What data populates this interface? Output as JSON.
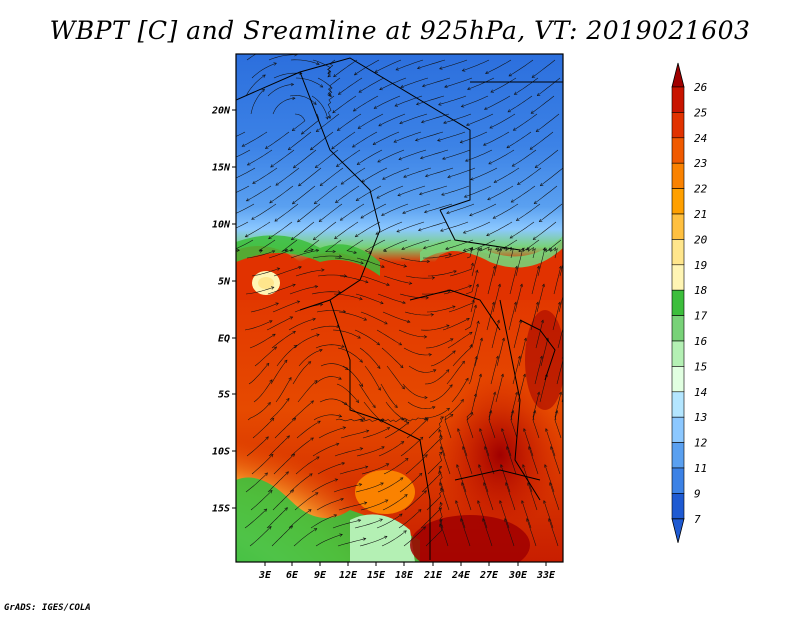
{
  "title": "WBPT [C] and Sreamline at 925hPa, VT: 2019021603",
  "footer": "GrADS: IGES/COLA",
  "map": {
    "lat_labels": [
      "20N",
      "15N",
      "10N",
      "5N",
      "EQ",
      "5S",
      "10S",
      "15S"
    ],
    "lon_labels": [
      "3E",
      "6E",
      "9E",
      "12E",
      "15E",
      "18E",
      "21E",
      "24E",
      "27E",
      "30E",
      "33E"
    ]
  },
  "colorbar": {
    "labels": [
      "26",
      "25",
      "24",
      "23",
      "22",
      "21",
      "20",
      "19",
      "18",
      "17",
      "16",
      "15",
      "14",
      "13",
      "12",
      "11",
      "9",
      "7"
    ],
    "colors": [
      "#a00000",
      "#c81400",
      "#e13200",
      "#f05a00",
      "#fa8200",
      "#ffa000",
      "#ffc040",
      "#ffe68c",
      "#fff5b4",
      "#3cbe3c",
      "#78d278",
      "#b4f0b4",
      "#e1ffe1",
      "#b4e6ff",
      "#8cc8ff",
      "#5aa0f0",
      "#3c82e6",
      "#1e5ad2"
    ]
  }
}
